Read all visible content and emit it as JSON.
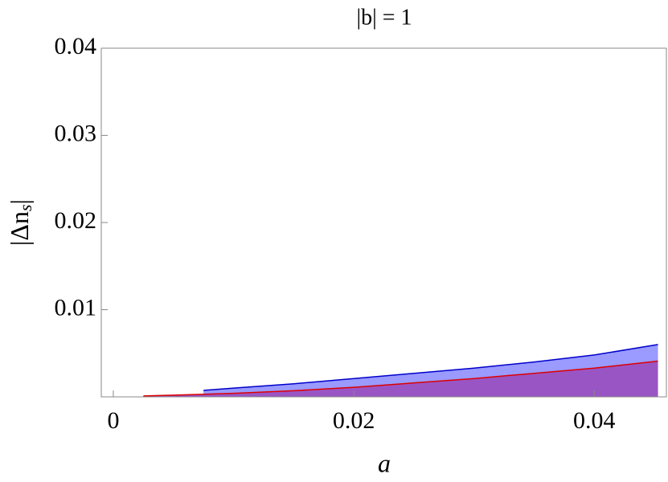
{
  "chart_data": {
    "type": "area",
    "title": "|b| = 1",
    "xlabel": "a",
    "ylabel": {
      "text": "|Δn",
      "subscript": "s",
      "close": "|"
    },
    "xlim": [
      -0.001,
      0.046
    ],
    "ylim": [
      0,
      0.04
    ],
    "xticks": [
      0,
      0.02,
      0.04
    ],
    "yticks": [
      0.01,
      0.02,
      0.03,
      0.04
    ],
    "series": [
      {
        "color": "#0000cc",
        "fill": "#9a9aff",
        "x": [
          0.0075,
          0.01,
          0.015,
          0.02,
          0.025,
          0.03,
          0.035,
          0.04,
          0.0453
        ],
        "values": [
          0.00074,
          0.001,
          0.0015,
          0.0021,
          0.0027,
          0.0033,
          0.004,
          0.0048,
          0.006
        ]
      },
      {
        "color": "#dd0000",
        "fill": "#9a55c4",
        "x": [
          0.0025,
          0.005,
          0.01,
          0.015,
          0.02,
          0.025,
          0.03,
          0.035,
          0.04,
          0.0453
        ],
        "values": [
          0.0001,
          0.0002,
          0.0004,
          0.0007,
          0.0011,
          0.0016,
          0.0021,
          0.0027,
          0.0033,
          0.0041
        ]
      }
    ]
  }
}
